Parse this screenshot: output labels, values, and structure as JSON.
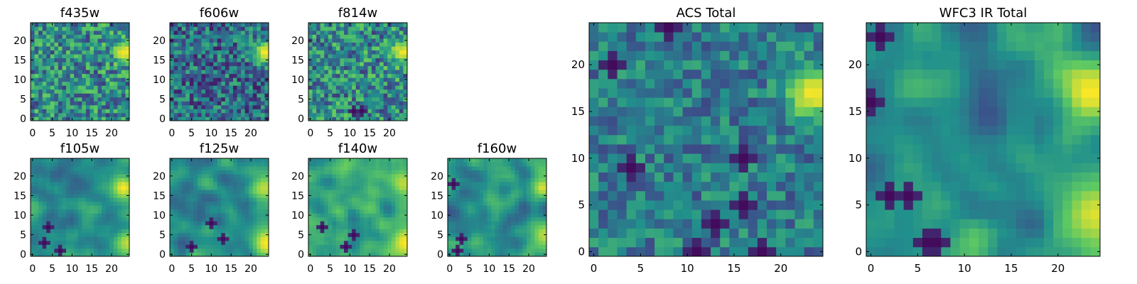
{
  "chart_data": {
    "type": "heatmap",
    "colormap": "viridis",
    "colormap_stops": [
      "#440154",
      "#3b528b",
      "#21918c",
      "#5ec962",
      "#fde725"
    ],
    "grid": false,
    "panels": [
      {
        "title": "f435w",
        "xlim": [
          0,
          25
        ],
        "ylim": [
          0,
          25
        ],
        "xticks": [
          0,
          5,
          10,
          15,
          20
        ],
        "yticks": [
          0,
          5,
          10,
          15,
          20
        ],
        "grid_size": [
          25,
          25
        ],
        "texture": "noise",
        "hotspots": [
          {
            "x": 23.5,
            "y": 17,
            "radius": 2,
            "peak": 1.0
          }
        ],
        "dark_spots": []
      },
      {
        "title": "f606w",
        "xlim": [
          0,
          25
        ],
        "ylim": [
          0,
          25
        ],
        "xticks": [
          0,
          5,
          10,
          15,
          20
        ],
        "yticks": [
          0,
          5,
          10,
          15,
          20
        ],
        "grid_size": [
          25,
          25
        ],
        "texture": "noise-dark",
        "hotspots": [
          {
            "x": 23.5,
            "y": 17,
            "radius": 2,
            "peak": 1.0
          }
        ],
        "dark_spots": []
      },
      {
        "title": "f814w",
        "xlim": [
          0,
          25
        ],
        "ylim": [
          0,
          25
        ],
        "xticks": [
          0,
          5,
          10,
          15,
          20
        ],
        "yticks": [
          0,
          5,
          10,
          15,
          20
        ],
        "grid_size": [
          25,
          25
        ],
        "texture": "noise",
        "hotspots": [
          {
            "x": 23.5,
            "y": 17,
            "radius": 2,
            "peak": 1.0
          }
        ],
        "dark_spots": [
          {
            "x": 11,
            "y": 2
          },
          {
            "x": 13,
            "y": 2
          }
        ]
      },
      {
        "title": "f105w",
        "xlim": [
          0,
          25
        ],
        "ylim": [
          0,
          25
        ],
        "xticks": [
          0,
          5,
          10,
          15,
          20
        ],
        "yticks": [
          0,
          5,
          10,
          15,
          20
        ],
        "grid_size": [
          25,
          25
        ],
        "texture": "smooth",
        "hotspots": [
          {
            "x": 23,
            "y": 17,
            "radius": 2.5,
            "peak": 1.0
          },
          {
            "x": 24,
            "y": 3,
            "radius": 2.5,
            "peak": 0.9
          }
        ],
        "dark_spots": [
          {
            "x": 4,
            "y": 7
          },
          {
            "x": 3,
            "y": 3
          },
          {
            "x": 7,
            "y": 1
          }
        ]
      },
      {
        "title": "f125w",
        "xlim": [
          0,
          25
        ],
        "ylim": [
          0,
          25
        ],
        "xticks": [
          0,
          5,
          10,
          15,
          20
        ],
        "yticks": [
          0,
          5,
          10,
          15,
          20
        ],
        "grid_size": [
          25,
          25
        ],
        "texture": "smooth",
        "hotspots": [
          {
            "x": 23.5,
            "y": 17,
            "radius": 2.5,
            "peak": 0.9
          },
          {
            "x": 24,
            "y": 3,
            "radius": 3,
            "peak": 1.0
          }
        ],
        "dark_spots": [
          {
            "x": 5,
            "y": 2
          },
          {
            "x": 10,
            "y": 8
          },
          {
            "x": 13,
            "y": 4
          }
        ]
      },
      {
        "title": "f140w",
        "xlim": [
          0,
          25
        ],
        "ylim": [
          0,
          25
        ],
        "xticks": [
          0,
          5,
          10,
          15,
          20
        ],
        "yticks": [
          0,
          5,
          10,
          15,
          20
        ],
        "grid_size": [
          25,
          25
        ],
        "texture": "smooth-bright",
        "hotspots": [
          {
            "x": 23.5,
            "y": 18,
            "radius": 2.5,
            "peak": 0.9
          },
          {
            "x": 24,
            "y": 3,
            "radius": 3,
            "peak": 1.0
          }
        ],
        "dark_spots": [
          {
            "x": 11,
            "y": 5
          },
          {
            "x": 9,
            "y": 2
          },
          {
            "x": 3,
            "y": 7
          }
        ]
      },
      {
        "title": "f160w",
        "xlim": [
          0,
          25
        ],
        "ylim": [
          0,
          25
        ],
        "xticks": [
          0,
          5,
          10,
          15,
          20
        ],
        "yticks": [
          0,
          5,
          10,
          15,
          20
        ],
        "grid_size": [
          25,
          25
        ],
        "texture": "smooth",
        "hotspots": [
          {
            "x": 23.5,
            "y": 17,
            "radius": 2,
            "peak": 0.95
          },
          {
            "x": 24,
            "y": 5,
            "radius": 3,
            "peak": 0.9
          }
        ],
        "dark_spots": [
          {
            "x": 1,
            "y": 18
          },
          {
            "x": 3,
            "y": 4
          },
          {
            "x": 2,
            "y": 1
          }
        ]
      },
      {
        "title": "ACS Total",
        "xlim": [
          0,
          25
        ],
        "ylim": [
          0,
          25
        ],
        "xticks": [
          0,
          5,
          10,
          15,
          20
        ],
        "yticks": [
          0,
          5,
          10,
          15,
          20
        ],
        "grid_size": [
          25,
          25
        ],
        "texture": "noise-mid",
        "hotspots": [
          {
            "x": 23.5,
            "y": 17,
            "radius": 2,
            "peak": 1.0
          }
        ],
        "dark_spots": [
          {
            "x": 8,
            "y": 24
          },
          {
            "x": 2,
            "y": 20
          },
          {
            "x": 16,
            "y": 10
          },
          {
            "x": 4,
            "y": 9
          },
          {
            "x": 16,
            "y": 5
          },
          {
            "x": 13,
            "y": 3
          },
          {
            "x": 11,
            "y": 0
          },
          {
            "x": 18,
            "y": 0
          }
        ]
      },
      {
        "title": "WFC3 IR Total",
        "xlim": [
          0,
          25
        ],
        "ylim": [
          0,
          25
        ],
        "xticks": [
          0,
          5,
          10,
          15,
          20
        ],
        "yticks": [
          0,
          5,
          10,
          15,
          20
        ],
        "grid_size": [
          25,
          25
        ],
        "texture": "smooth",
        "hotspots": [
          {
            "x": 23.5,
            "y": 17,
            "radius": 2.5,
            "peak": 1.0
          },
          {
            "x": 24,
            "y": 4,
            "radius": 3,
            "peak": 0.95
          }
        ],
        "dark_spots": [
          {
            "x": 1,
            "y": 23
          },
          {
            "x": 0,
            "y": 16
          },
          {
            "x": 4,
            "y": 6
          },
          {
            "x": 6,
            "y": 1
          },
          {
            "x": 7,
            "y": 1
          },
          {
            "x": 2,
            "y": 6
          }
        ]
      }
    ]
  }
}
